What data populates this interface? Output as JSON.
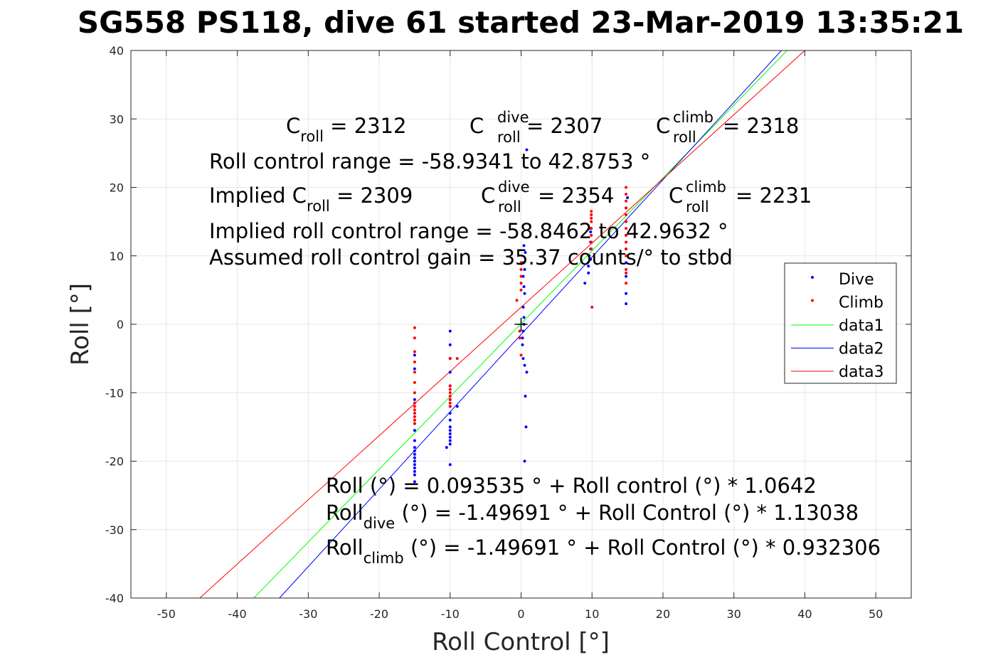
{
  "chart_data": {
    "type": "scatter",
    "title": "SG558 PS118, dive 61 started 23-Mar-2019 13:35:21",
    "xlabel": "Roll Control [°]",
    "ylabel": "Roll [°]",
    "xlim": [
      -55,
      55
    ],
    "ylim": [
      -40,
      40
    ],
    "xticks": [
      -50,
      -40,
      -30,
      -20,
      -10,
      0,
      10,
      20,
      30,
      40,
      50
    ],
    "yticks": [
      -40,
      -30,
      -20,
      -10,
      0,
      10,
      20,
      30,
      40
    ],
    "xtick_labels": [
      "-50",
      "-40",
      "-30",
      "-20",
      "-10",
      "0",
      "10",
      "20",
      "30",
      "40",
      "50"
    ],
    "ytick_labels": [
      "-40",
      "-30",
      "-20",
      "-10",
      "0",
      "10",
      "20",
      "30",
      "40"
    ],
    "grid": true,
    "legend": {
      "position": "right",
      "entries": [
        {
          "name": "Dive",
          "color": "#0000ff",
          "style": "marker"
        },
        {
          "name": "Climb",
          "color": "#ff0000",
          "style": "marker"
        },
        {
          "name": "data1",
          "color": "#00ff00",
          "style": "line"
        },
        {
          "name": "data2",
          "color": "#0000ff",
          "style": "line"
        },
        {
          "name": "data3",
          "color": "#ff0000",
          "style": "line"
        }
      ]
    },
    "series": [
      {
        "name": "Dive",
        "color": "#0000ff",
        "type": "scatter",
        "points": [
          [
            -15.0,
            -23.0
          ],
          [
            -15.0,
            -22.0
          ],
          [
            -15.0,
            -21.5
          ],
          [
            -15.0,
            -21.0
          ],
          [
            -15.0,
            -20.5
          ],
          [
            -15.0,
            -20.0
          ],
          [
            -15.0,
            -19.5
          ],
          [
            -15.0,
            -19.0
          ],
          [
            -15.0,
            -18.5
          ],
          [
            -15.0,
            -18.0
          ],
          [
            -15.0,
            -17.0
          ],
          [
            -15.0,
            -15.5
          ],
          [
            -15.0,
            -14.5
          ],
          [
            -15.0,
            -13.0
          ],
          [
            -15.0,
            -11.0
          ],
          [
            -15.0,
            -6.5
          ],
          [
            -15.0,
            -4.5
          ],
          [
            -10.0,
            -20.5
          ],
          [
            -10.5,
            -18.0
          ],
          [
            -10.0,
            -17.5
          ],
          [
            -10.0,
            -17.0
          ],
          [
            -10.0,
            -16.5
          ],
          [
            -10.0,
            -16.0
          ],
          [
            -10.0,
            -15.5
          ],
          [
            -10.0,
            -15.0
          ],
          [
            -10.0,
            -14.0
          ],
          [
            -10.0,
            -13.0
          ],
          [
            -10.0,
            -12.0
          ],
          [
            -10.0,
            -11.0
          ],
          [
            -10.0,
            -9.0
          ],
          [
            -10.0,
            -7.0
          ],
          [
            -10.0,
            -5.0
          ],
          [
            -10.0,
            -3.0
          ],
          [
            -10.0,
            -1.0
          ],
          [
            -9.0,
            -12.0
          ],
          [
            0.5,
            -20.0
          ],
          [
            0.7,
            -15.0
          ],
          [
            0.6,
            -10.5
          ],
          [
            0.8,
            -7.0
          ],
          [
            0.5,
            -6.0
          ],
          [
            0.3,
            -5.0
          ],
          [
            0.2,
            -3.0
          ],
          [
            0.2,
            -2.0
          ],
          [
            0.3,
            -1.0
          ],
          [
            0.4,
            0.0
          ],
          [
            0.4,
            1.0
          ],
          [
            0.3,
            2.5
          ],
          [
            0.5,
            4.5
          ],
          [
            0.4,
            5.5
          ],
          [
            0.3,
            7.0
          ],
          [
            0.5,
            8.0
          ],
          [
            0.3,
            9.0
          ],
          [
            0.6,
            10.5
          ],
          [
            0.4,
            11.5
          ],
          [
            0.8,
            25.5
          ],
          [
            9.0,
            6.0
          ],
          [
            9.5,
            7.5
          ],
          [
            9.5,
            8.5
          ],
          [
            9.8,
            9.5
          ],
          [
            9.6,
            10.0
          ],
          [
            9.8,
            11.0
          ],
          [
            9.8,
            12.0
          ],
          [
            9.8,
            13.5
          ],
          [
            9.8,
            14.0
          ],
          [
            14.8,
            3.0
          ],
          [
            14.8,
            4.5
          ],
          [
            14.8,
            7.0
          ],
          [
            14.8,
            9.0
          ],
          [
            14.8,
            11.0
          ],
          [
            14.8,
            13.0
          ],
          [
            14.8,
            15.0
          ],
          [
            14.8,
            17.0
          ],
          [
            15.0,
            18.5
          ]
        ]
      },
      {
        "name": "Climb",
        "color": "#ff0000",
        "type": "scatter",
        "points": [
          [
            -15.0,
            -0.5
          ],
          [
            -15.0,
            -2.0
          ],
          [
            -15.0,
            -4.0
          ],
          [
            -15.0,
            -5.5
          ],
          [
            -15.0,
            -7.0
          ],
          [
            -15.0,
            -8.5
          ],
          [
            -15.0,
            -10.0
          ],
          [
            -15.0,
            -11.5
          ],
          [
            -15.0,
            -12.0
          ],
          [
            -15.0,
            -12.5
          ],
          [
            -15.0,
            -13.0
          ],
          [
            -15.0,
            -13.5
          ],
          [
            -15.0,
            -14.0
          ],
          [
            -15.0,
            -14.5
          ],
          [
            -10.0,
            -5.0
          ],
          [
            -9.0,
            -5.0
          ],
          [
            -10.0,
            -9.0
          ],
          [
            -10.0,
            -9.5
          ],
          [
            -10.0,
            -10.0
          ],
          [
            -10.0,
            -10.5
          ],
          [
            -10.0,
            -11.0
          ],
          [
            -10.0,
            -11.5
          ],
          [
            -10.0,
            -12.0
          ],
          [
            -0.6,
            3.5
          ],
          [
            -0.2,
            -1.0
          ],
          [
            -0.2,
            -2.0
          ],
          [
            0.0,
            -4.5
          ],
          [
            0.0,
            6.0
          ],
          [
            0.0,
            7.0
          ],
          [
            0.0,
            8.0
          ],
          [
            0.0,
            9.0
          ],
          [
            0.0,
            5.0
          ],
          [
            9.9,
            16.5
          ],
          [
            9.9,
            16.0
          ],
          [
            9.9,
            15.5
          ],
          [
            9.9,
            15.0
          ],
          [
            9.9,
            14.0
          ],
          [
            9.9,
            13.0
          ],
          [
            9.9,
            12.0
          ],
          [
            9.9,
            11.0
          ],
          [
            10.0,
            2.5
          ],
          [
            14.8,
            20.0
          ],
          [
            14.8,
            19.0
          ],
          [
            14.8,
            18.0
          ],
          [
            14.8,
            17.0
          ],
          [
            14.8,
            16.0
          ],
          [
            14.8,
            15.0
          ],
          [
            14.8,
            14.0
          ],
          [
            14.8,
            13.0
          ],
          [
            14.8,
            12.0
          ],
          [
            14.8,
            11.0
          ],
          [
            14.8,
            10.0
          ],
          [
            14.8,
            8.0
          ],
          [
            14.8,
            7.5
          ],
          [
            14.8,
            6.0
          ]
        ]
      },
      {
        "name": "data1",
        "color": "#00ff00",
        "type": "line",
        "x": [
          -37.68,
          37.5
        ],
        "y": [
          -40,
          40
        ]
      },
      {
        "name": "data2",
        "color": "#0000ff",
        "type": "line",
        "x": [
          -34.06,
          36.7
        ],
        "y": [
          -40,
          40
        ]
      },
      {
        "name": "data3",
        "color": "#ff0000",
        "type": "line",
        "x": [
          -45.3,
          40.0
        ],
        "y": [
          -40,
          40
        ]
      }
    ],
    "origin_marker": {
      "symbol": "+",
      "x": 0,
      "y": 0,
      "color": "#000000"
    }
  },
  "annotations": {
    "c_roll": {
      "base": "C",
      "sub": "roll",
      "rest": " = 2312"
    },
    "c_roll_dive": {
      "base": "C",
      "sup": "dive",
      "sub": "roll",
      "rest": " = 2307"
    },
    "c_roll_climb": {
      "base": "C",
      "sup": "climb",
      "sub": "roll",
      "rest": " = 2318"
    },
    "range_line": "Roll control range = -58.9341 to 42.8753 °",
    "implied_prefix": "Implied C",
    "implied_sub": "roll",
    "implied_rest": " = 2309",
    "implied_dive": {
      "base": "C",
      "sup": "dive",
      "sub": "roll",
      "rest": " = 2354"
    },
    "implied_climb": {
      "base": "C",
      "sup": "climb",
      "sub": "roll",
      "rest": " = 2231"
    },
    "implied_range_line": "Implied roll control range = -58.8462 to 42.9632 °",
    "gain_line": "Assumed roll control gain = 35.37 counts/° to stbd",
    "eq1": "Roll (°) = 0.093535 ° + Roll control (°) * 1.0642",
    "eq2_base": "Roll",
    "eq2_sub": "dive",
    "eq2_rest": " (°) = -1.49691 ° + Roll Control (°) * 1.13038",
    "eq3_base": "Roll",
    "eq3_sub": "climb",
    "eq3_rest": " (°) = -1.49691 ° + Roll Control (°) * 0.932306"
  }
}
